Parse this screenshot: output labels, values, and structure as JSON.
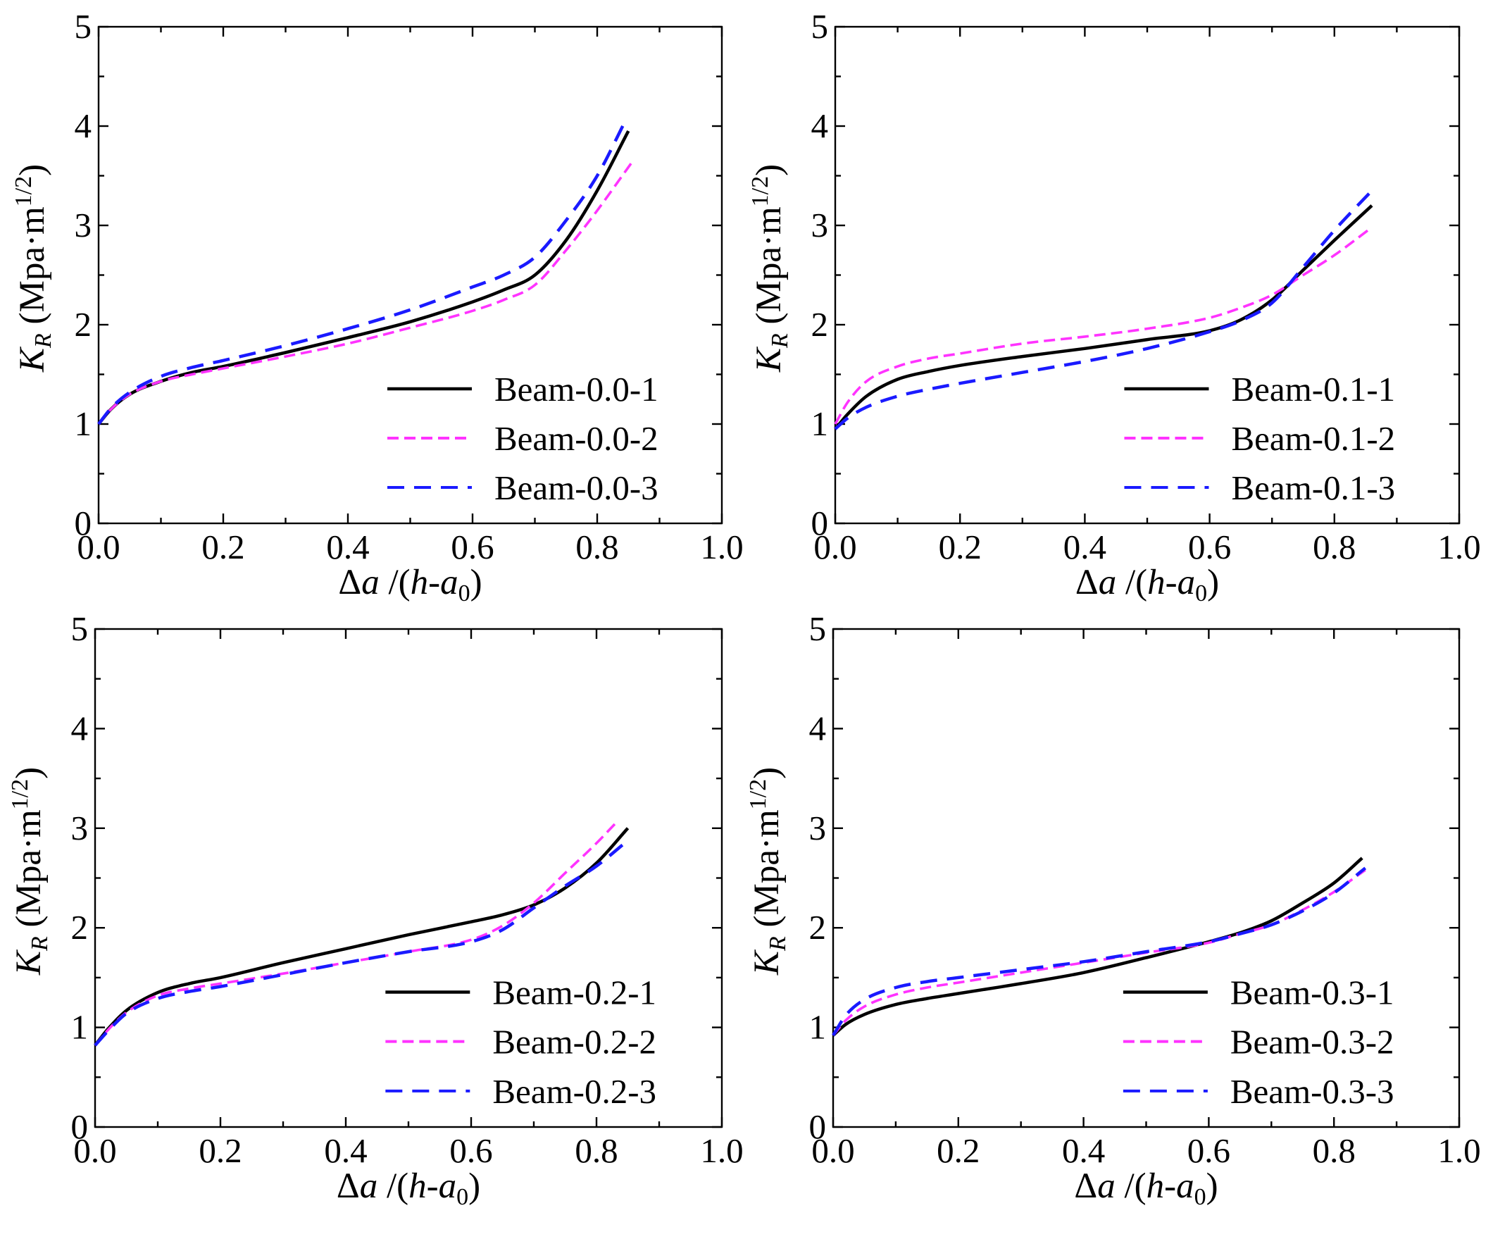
{
  "figure": {
    "layout": "2x2 grid"
  },
  "chart_data": [
    {
      "type": "line",
      "panel": "top-left",
      "xlabel": "Δa /(h-a0)",
      "ylabel": "KR (Mpa·m1/2)",
      "xlim": [
        0,
        1.0
      ],
      "ylim": [
        0,
        5
      ],
      "xticks": [
        "0.0",
        "0.2",
        "0.4",
        "0.6",
        "0.8",
        "1.0"
      ],
      "yticks": [
        "0",
        "1",
        "2",
        "3",
        "4",
        "5"
      ],
      "grid": false,
      "legend_position": "lower-right",
      "series": [
        {
          "name": "Beam-0.0-1",
          "color": "#000000",
          "style": "solid",
          "x": [
            0,
            0.02,
            0.05,
            0.1,
            0.15,
            0.2,
            0.3,
            0.4,
            0.5,
            0.6,
            0.65,
            0.7,
            0.75,
            0.8,
            0.85
          ],
          "y": [
            1.0,
            1.15,
            1.3,
            1.43,
            1.52,
            1.58,
            1.72,
            1.87,
            2.03,
            2.23,
            2.35,
            2.5,
            2.85,
            3.35,
            3.95
          ]
        },
        {
          "name": "Beam-0.0-2",
          "color": "#ff33ff",
          "style": "dashed",
          "x": [
            0,
            0.02,
            0.05,
            0.1,
            0.15,
            0.2,
            0.3,
            0.4,
            0.5,
            0.6,
            0.65,
            0.7,
            0.75,
            0.8,
            0.855
          ],
          "y": [
            1.0,
            1.15,
            1.3,
            1.43,
            1.5,
            1.56,
            1.68,
            1.81,
            1.97,
            2.14,
            2.25,
            2.4,
            2.75,
            3.15,
            3.63
          ]
        },
        {
          "name": "Beam-0.0-3",
          "color": "#1a1aff",
          "style": "dashed",
          "x": [
            0,
            0.02,
            0.05,
            0.1,
            0.15,
            0.2,
            0.3,
            0.4,
            0.5,
            0.6,
            0.65,
            0.7,
            0.75,
            0.8,
            0.845
          ],
          "y": [
            1.0,
            1.16,
            1.32,
            1.48,
            1.57,
            1.64,
            1.79,
            1.96,
            2.15,
            2.38,
            2.5,
            2.68,
            3.05,
            3.5,
            4.05
          ]
        }
      ]
    },
    {
      "type": "line",
      "panel": "top-right",
      "xlabel": "Δa /(h-a0)",
      "ylabel": "KR (Mpa·m1/2)",
      "xlim": [
        0,
        1.0
      ],
      "ylim": [
        0,
        5
      ],
      "xticks": [
        "0.0",
        "0.2",
        "0.4",
        "0.6",
        "0.8",
        "1.0"
      ],
      "yticks": [
        "0",
        "1",
        "2",
        "3",
        "4",
        "5"
      ],
      "grid": false,
      "legend_position": "lower-right",
      "series": [
        {
          "name": "Beam-0.1-1",
          "color": "#000000",
          "style": "solid",
          "x": [
            0,
            0.02,
            0.05,
            0.1,
            0.15,
            0.2,
            0.3,
            0.4,
            0.5,
            0.6,
            0.65,
            0.7,
            0.75,
            0.8,
            0.86
          ],
          "y": [
            0.95,
            1.1,
            1.28,
            1.45,
            1.53,
            1.59,
            1.68,
            1.76,
            1.85,
            1.94,
            2.05,
            2.25,
            2.55,
            2.85,
            3.2
          ]
        },
        {
          "name": "Beam-0.1-2",
          "color": "#ff33ff",
          "style": "dashed",
          "x": [
            0,
            0.02,
            0.05,
            0.1,
            0.15,
            0.2,
            0.3,
            0.4,
            0.5,
            0.6,
            0.65,
            0.7,
            0.75,
            0.8,
            0.86
          ],
          "y": [
            1.0,
            1.22,
            1.43,
            1.58,
            1.66,
            1.71,
            1.81,
            1.88,
            1.96,
            2.07,
            2.17,
            2.3,
            2.5,
            2.7,
            2.98
          ]
        },
        {
          "name": "Beam-0.1-3",
          "color": "#1a1aff",
          "style": "dashed",
          "x": [
            0,
            0.02,
            0.05,
            0.1,
            0.15,
            0.2,
            0.3,
            0.4,
            0.5,
            0.6,
            0.65,
            0.7,
            0.75,
            0.8,
            0.86
          ],
          "y": [
            0.95,
            1.06,
            1.17,
            1.28,
            1.35,
            1.41,
            1.52,
            1.63,
            1.76,
            1.93,
            2.04,
            2.22,
            2.58,
            2.95,
            3.35
          ]
        }
      ]
    },
    {
      "type": "line",
      "panel": "bottom-left",
      "xlabel": "Δa /(h-a0)",
      "ylabel": "KR (Mpa·m1/2)",
      "xlim": [
        0,
        1.0
      ],
      "ylim": [
        0,
        5
      ],
      "xticks": [
        "0.0",
        "0.2",
        "0.4",
        "0.6",
        "0.8",
        "1.0"
      ],
      "yticks": [
        "0",
        "1",
        "2",
        "3",
        "4",
        "5"
      ],
      "grid": false,
      "legend_position": "lower-right",
      "series": [
        {
          "name": "Beam-0.2-1",
          "color": "#000000",
          "style": "solid",
          "x": [
            0,
            0.02,
            0.05,
            0.1,
            0.15,
            0.2,
            0.3,
            0.4,
            0.5,
            0.6,
            0.65,
            0.7,
            0.75,
            0.8,
            0.85
          ],
          "y": [
            0.82,
            0.98,
            1.17,
            1.35,
            1.44,
            1.5,
            1.65,
            1.79,
            1.93,
            2.06,
            2.13,
            2.23,
            2.4,
            2.65,
            3.0
          ]
        },
        {
          "name": "Beam-0.2-2",
          "color": "#ff33ff",
          "style": "dashed",
          "x": [
            0,
            0.02,
            0.05,
            0.1,
            0.15,
            0.2,
            0.3,
            0.4,
            0.5,
            0.6,
            0.65,
            0.7,
            0.75,
            0.8,
            0.835
          ],
          "y": [
            0.82,
            0.97,
            1.15,
            1.32,
            1.39,
            1.44,
            1.54,
            1.65,
            1.76,
            1.88,
            2.02,
            2.25,
            2.55,
            2.85,
            3.08
          ]
        },
        {
          "name": "Beam-0.2-3",
          "color": "#1a1aff",
          "style": "dashed",
          "x": [
            0,
            0.02,
            0.05,
            0.1,
            0.15,
            0.2,
            0.3,
            0.4,
            0.5,
            0.6,
            0.65,
            0.7,
            0.75,
            0.8,
            0.845
          ],
          "y": [
            0.82,
            0.96,
            1.14,
            1.29,
            1.36,
            1.41,
            1.53,
            1.65,
            1.76,
            1.86,
            1.98,
            2.2,
            2.42,
            2.62,
            2.85
          ]
        }
      ]
    },
    {
      "type": "line",
      "panel": "bottom-right",
      "xlabel": "Δa /(h-a0)",
      "ylabel": "KR (Mpa·m1/2)",
      "xlim": [
        0,
        1.0
      ],
      "ylim": [
        0,
        5
      ],
      "xticks": [
        "0.0",
        "0.2",
        "0.4",
        "0.6",
        "0.8",
        "1.0"
      ],
      "yticks": [
        "0",
        "1",
        "2",
        "3",
        "4",
        "5"
      ],
      "grid": false,
      "legend_position": "lower-right",
      "series": [
        {
          "name": "Beam-0.3-1",
          "color": "#000000",
          "style": "solid",
          "x": [
            0,
            0.02,
            0.05,
            0.1,
            0.15,
            0.2,
            0.3,
            0.4,
            0.5,
            0.6,
            0.65,
            0.7,
            0.75,
            0.8,
            0.845
          ],
          "y": [
            0.92,
            1.03,
            1.13,
            1.23,
            1.29,
            1.34,
            1.44,
            1.55,
            1.7,
            1.86,
            1.95,
            2.07,
            2.25,
            2.45,
            2.7
          ]
        },
        {
          "name": "Beam-0.3-2",
          "color": "#ff33ff",
          "style": "dashed",
          "x": [
            0,
            0.02,
            0.05,
            0.1,
            0.15,
            0.2,
            0.3,
            0.4,
            0.5,
            0.6,
            0.65,
            0.7,
            0.75,
            0.8,
            0.85
          ],
          "y": [
            0.92,
            1.07,
            1.21,
            1.33,
            1.4,
            1.45,
            1.55,
            1.65,
            1.75,
            1.85,
            1.94,
            2.03,
            2.18,
            2.36,
            2.58
          ]
        },
        {
          "name": "Beam-0.3-3",
          "color": "#1a1aff",
          "style": "dashed",
          "x": [
            0,
            0.02,
            0.05,
            0.1,
            0.15,
            0.2,
            0.3,
            0.4,
            0.5,
            0.6,
            0.65,
            0.7,
            0.75,
            0.8,
            0.85
          ],
          "y": [
            0.92,
            1.12,
            1.28,
            1.4,
            1.46,
            1.5,
            1.58,
            1.66,
            1.76,
            1.86,
            1.94,
            2.03,
            2.17,
            2.35,
            2.6
          ]
        }
      ]
    }
  ]
}
